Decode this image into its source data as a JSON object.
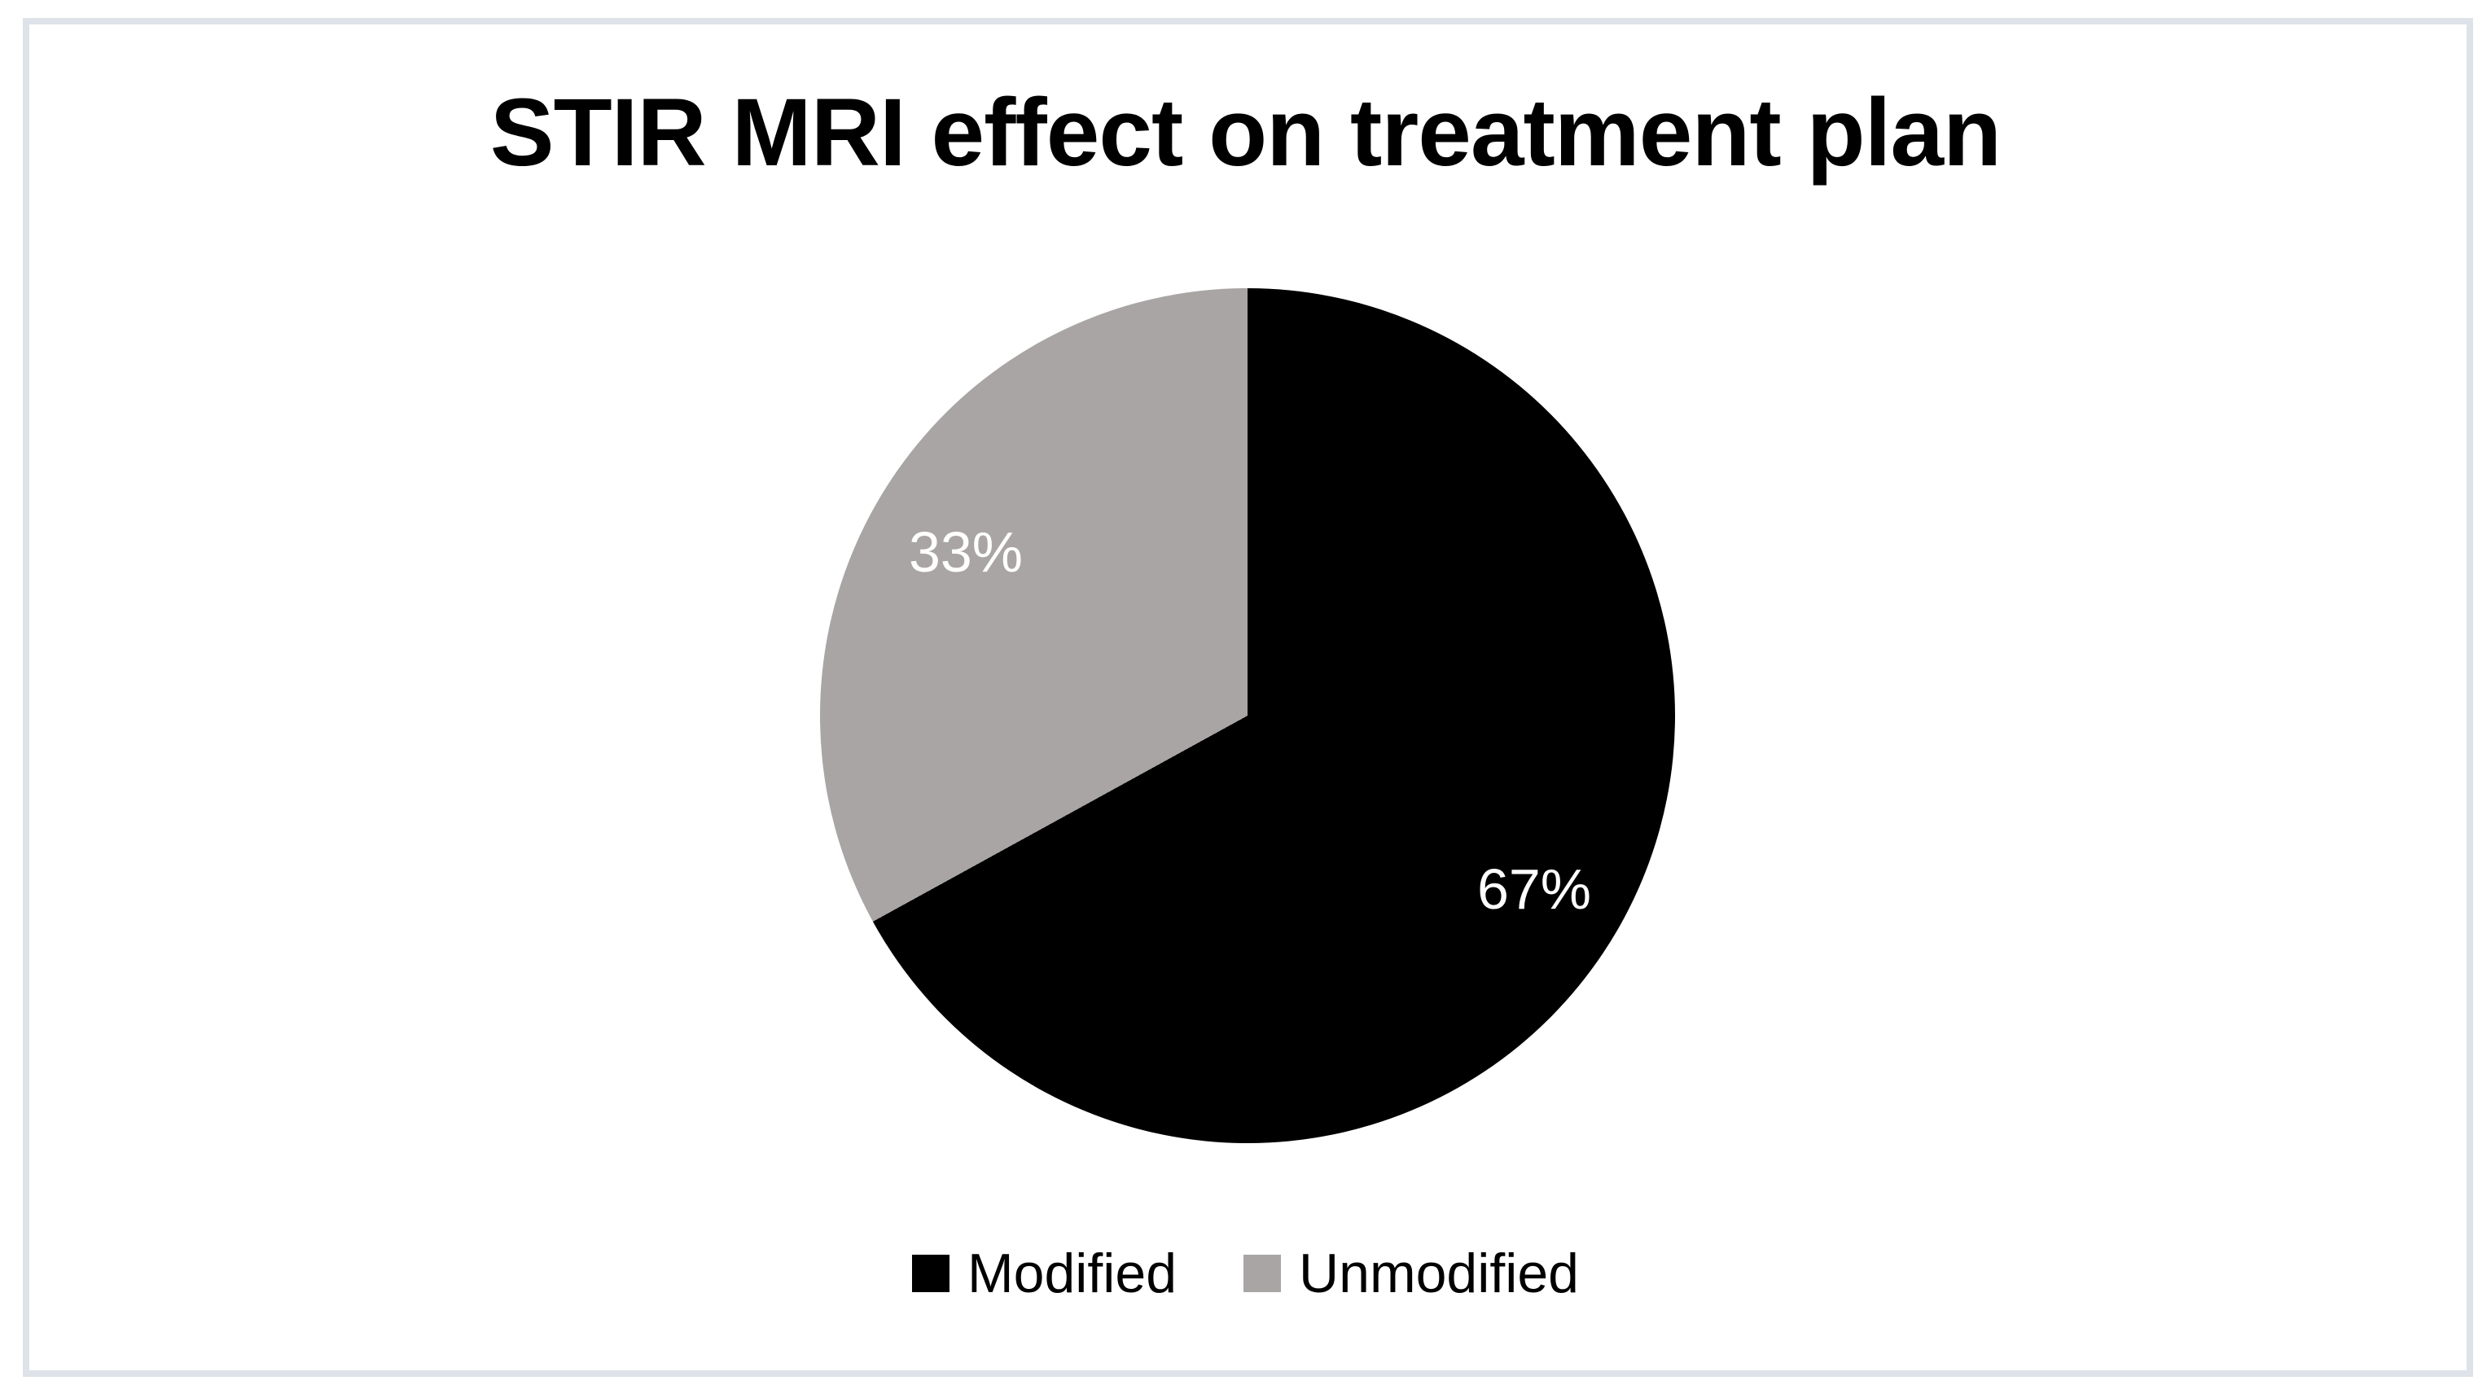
{
  "chart_data": {
    "type": "pie",
    "title": "STIR MRI effect on treatment plan",
    "categories": [
      "Modified",
      "Unmodified"
    ],
    "values": [
      67,
      33
    ],
    "slice_labels": [
      "67%",
      "33%"
    ],
    "colors": [
      "#000000",
      "#a9a5a5"
    ],
    "slice_label_color": "#ffffff",
    "start_angle_deg": 0,
    "direction": "clockwise",
    "legend_position": "bottom"
  }
}
